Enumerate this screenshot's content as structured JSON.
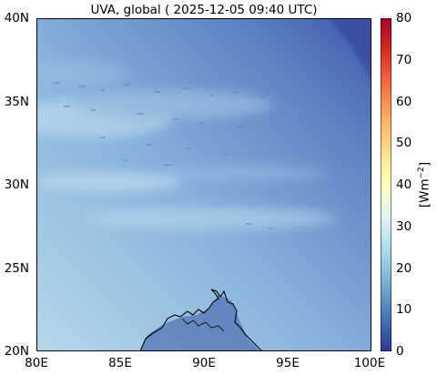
{
  "title": "UVA, global ( 2025-12-05 09:40 UTC)",
  "colors": {
    "field_light": "#b7d8ea",
    "field_mid": "#6d98cc",
    "field_dark": "#3f58a9",
    "coastline": "#000000"
  },
  "map": {
    "lon_range": [
      80,
      100
    ],
    "lat_range": [
      20,
      40
    ],
    "y_ticks": [
      "40N",
      "35N",
      "30N",
      "25N",
      "20N"
    ],
    "x_ticks": [
      "80E",
      "85E",
      "90E",
      "95E",
      "100E"
    ]
  },
  "colorbar": {
    "label_base": "[Wm",
    "label_exp": "−2",
    "label_close": "]",
    "ticks": [
      "80",
      "70",
      "60",
      "50",
      "40",
      "30",
      "20",
      "10",
      "0"
    ],
    "range": [
      0,
      80
    ],
    "colormap_stops": [
      "#313695",
      "#4575b4",
      "#74add1",
      "#abd9e9",
      "#e0f3f8",
      "#ffffbf",
      "#fee090",
      "#fdae61",
      "#f46d43",
      "#d73027",
      "#a50026"
    ]
  }
}
